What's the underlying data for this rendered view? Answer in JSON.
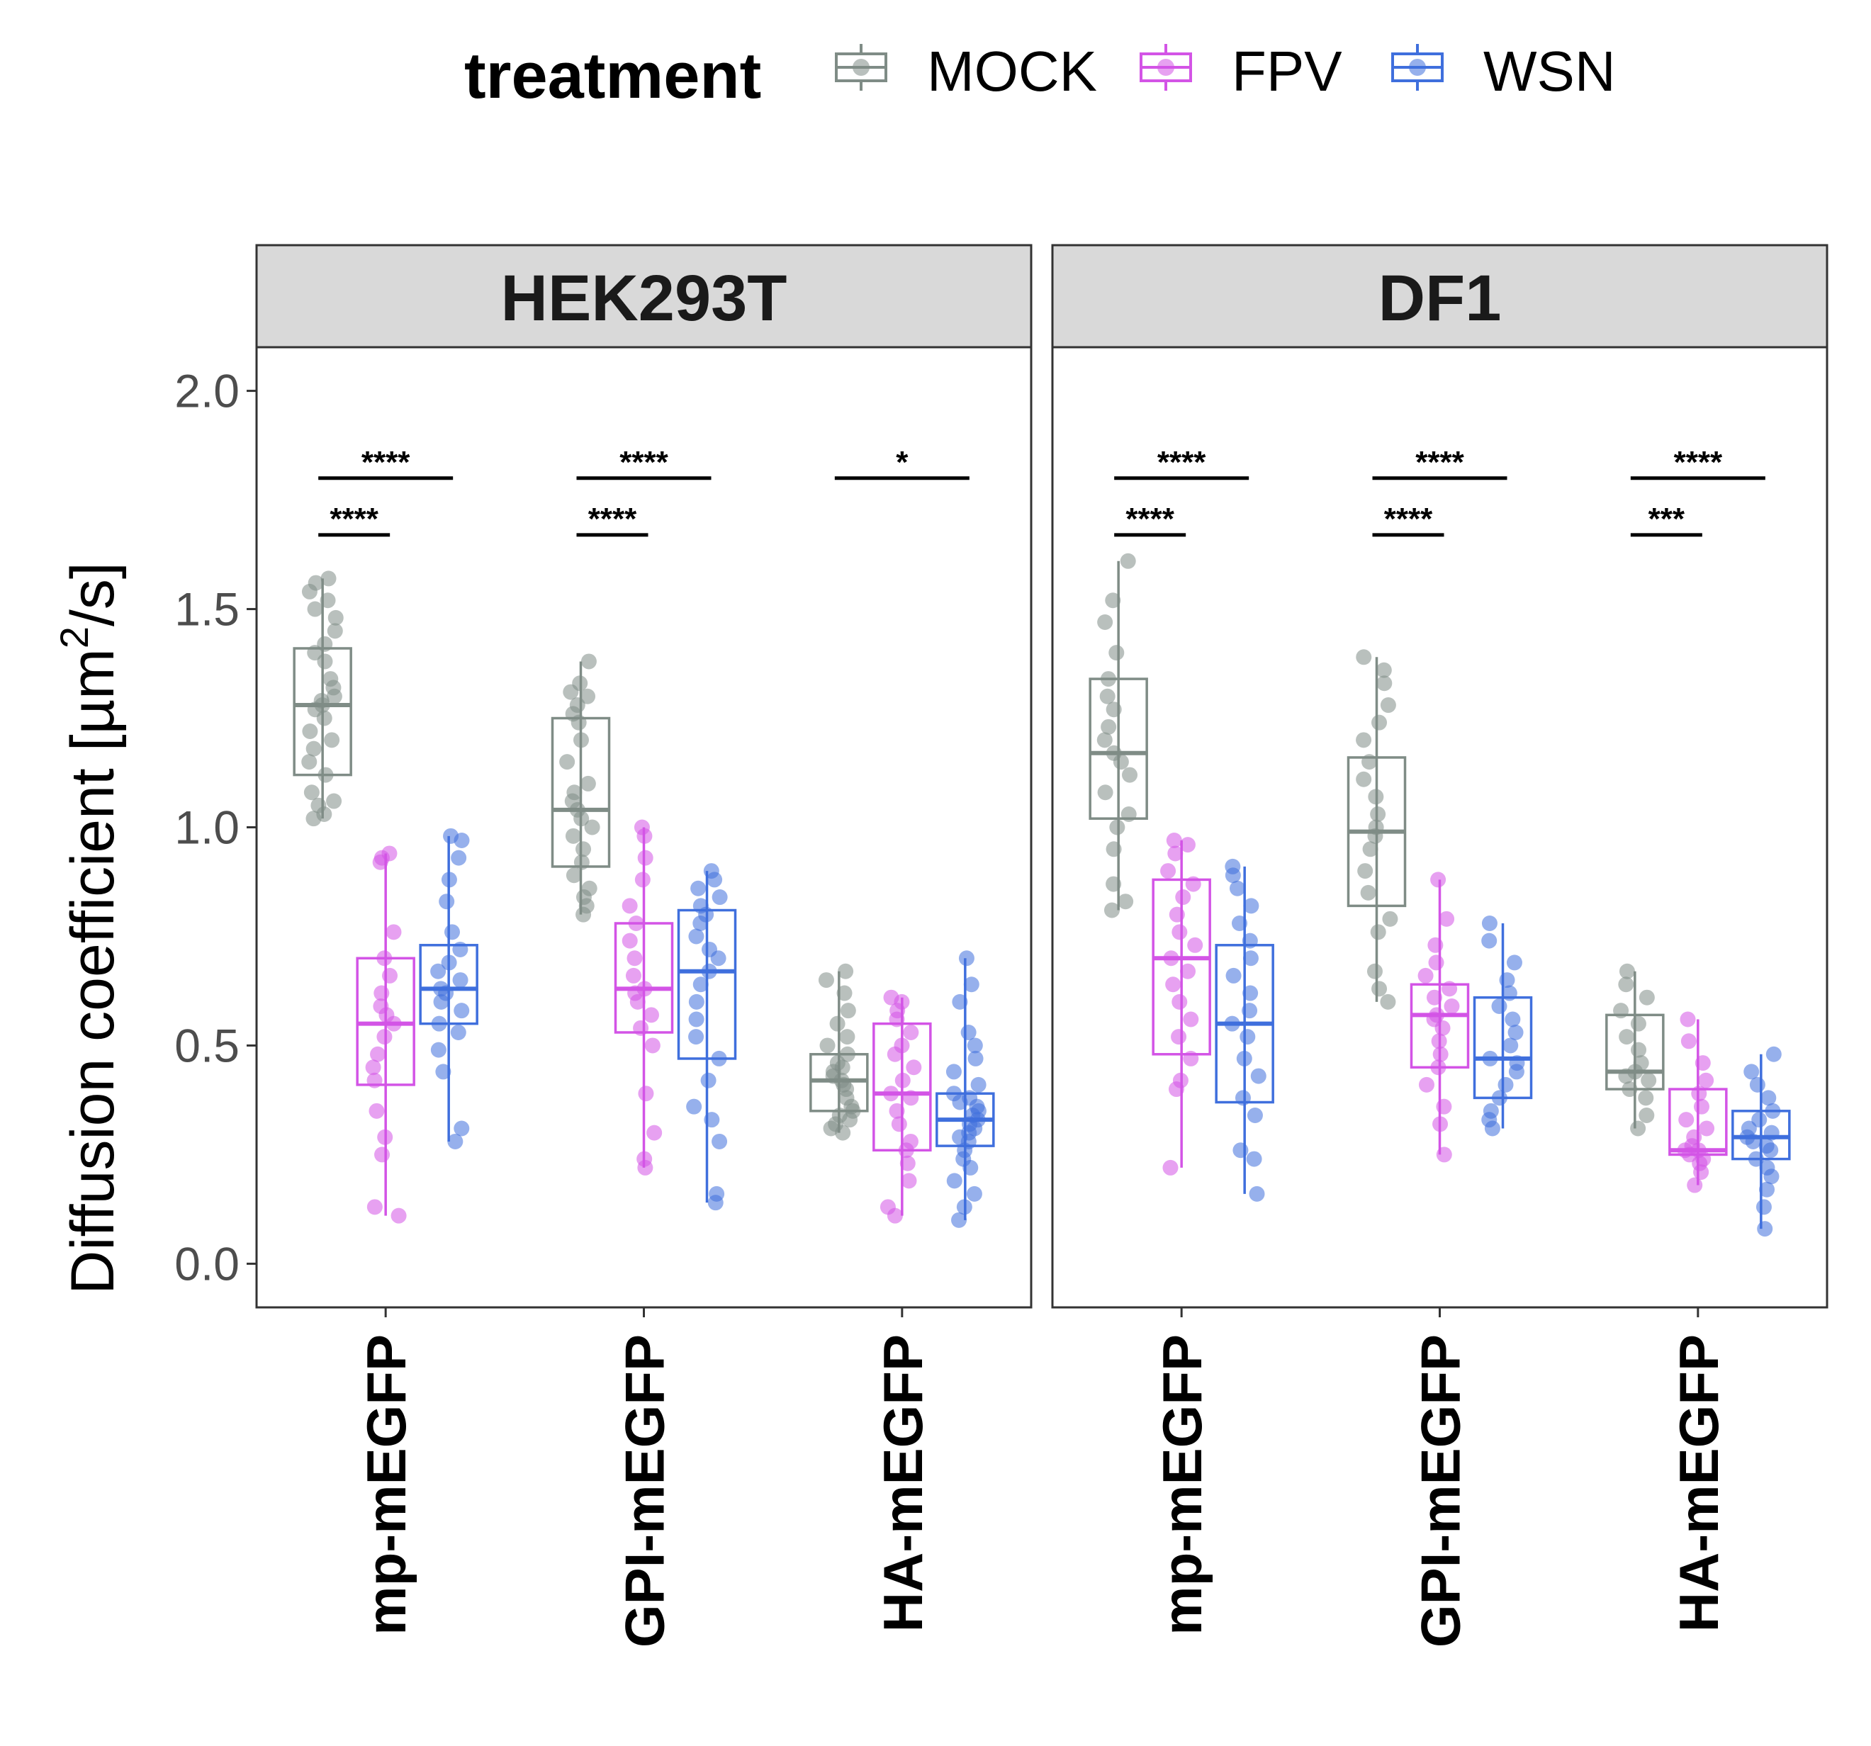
{
  "chart_data": {
    "type": "boxplot",
    "legend": {
      "title": "treatment",
      "position": "top",
      "entries": [
        {
          "label": "MOCK",
          "color": "#7f8c86"
        },
        {
          "label": "FPV",
          "color": "#d354e6"
        },
        {
          "label": "WSN",
          "color": "#3f6fdd"
        }
      ]
    },
    "ylabel": "Diffusion coefficient [µm",
    "ylabel_sup": "2",
    "ylabel_end": "/s]",
    "ylim": [
      -0.1,
      2.1
    ],
    "yticks": [
      0.0,
      0.5,
      1.0,
      1.5,
      2.0
    ],
    "ytick_labels": [
      "0.0",
      "0.5",
      "1.0",
      "1.5",
      "2.0"
    ],
    "categories": [
      "mp-mEGFP",
      "GPI-mEGFP",
      "HA-mEGFP"
    ],
    "treatments": [
      "MOCK",
      "FPV",
      "WSN"
    ],
    "facets": [
      {
        "label": "HEK293T",
        "boxes": [
          [
            {
              "q1": 1.12,
              "median": 1.28,
              "q3": 1.41,
              "lo": 1.02,
              "hi": 1.57,
              "points": [
                1.02,
                1.03,
                1.05,
                1.06,
                1.08,
                1.12,
                1.15,
                1.18,
                1.2,
                1.22,
                1.25,
                1.27,
                1.28,
                1.29,
                1.3,
                1.32,
                1.34,
                1.38,
                1.4,
                1.42,
                1.45,
                1.48,
                1.5,
                1.52,
                1.54,
                1.56,
                1.57
              ]
            },
            {
              "q1": 0.41,
              "median": 0.55,
              "q3": 0.7,
              "lo": 0.11,
              "hi": 0.94,
              "points": [
                0.11,
                0.13,
                0.25,
                0.29,
                0.35,
                0.42,
                0.45,
                0.48,
                0.52,
                0.55,
                0.57,
                0.59,
                0.62,
                0.66,
                0.7,
                0.76,
                0.92,
                0.93,
                0.94
              ]
            },
            {
              "q1": 0.55,
              "median": 0.63,
              "q3": 0.73,
              "lo": 0.28,
              "hi": 0.98,
              "points": [
                0.28,
                0.31,
                0.44,
                0.49,
                0.53,
                0.55,
                0.58,
                0.6,
                0.62,
                0.63,
                0.65,
                0.67,
                0.69,
                0.72,
                0.76,
                0.83,
                0.88,
                0.93,
                0.97,
                0.98
              ]
            }
          ],
          [
            {
              "q1": 0.91,
              "median": 1.04,
              "q3": 1.25,
              "lo": 0.8,
              "hi": 1.38,
              "points": [
                0.8,
                0.82,
                0.84,
                0.86,
                0.89,
                0.92,
                0.95,
                0.98,
                1.0,
                1.02,
                1.04,
                1.06,
                1.08,
                1.1,
                1.15,
                1.2,
                1.24,
                1.26,
                1.28,
                1.3,
                1.31,
                1.33,
                1.38
              ]
            },
            {
              "q1": 0.53,
              "median": 0.63,
              "q3": 0.78,
              "lo": 0.22,
              "hi": 1.0,
              "points": [
                0.22,
                0.24,
                0.3,
                0.39,
                0.5,
                0.54,
                0.57,
                0.6,
                0.62,
                0.63,
                0.66,
                0.7,
                0.74,
                0.78,
                0.82,
                0.88,
                0.93,
                0.98,
                1.0
              ]
            },
            {
              "q1": 0.47,
              "median": 0.67,
              "q3": 0.81,
              "lo": 0.14,
              "hi": 0.9,
              "points": [
                0.14,
                0.16,
                0.28,
                0.33,
                0.36,
                0.42,
                0.47,
                0.52,
                0.56,
                0.6,
                0.64,
                0.67,
                0.7,
                0.72,
                0.75,
                0.78,
                0.8,
                0.82,
                0.84,
                0.86,
                0.88,
                0.9
              ]
            }
          ],
          [
            {
              "q1": 0.35,
              "median": 0.42,
              "q3": 0.48,
              "lo": 0.3,
              "hi": 0.67,
              "points": [
                0.3,
                0.31,
                0.32,
                0.33,
                0.34,
                0.35,
                0.36,
                0.38,
                0.4,
                0.41,
                0.42,
                0.43,
                0.44,
                0.45,
                0.46,
                0.48,
                0.5,
                0.52,
                0.55,
                0.58,
                0.62,
                0.65,
                0.67
              ]
            },
            {
              "q1": 0.26,
              "median": 0.39,
              "q3": 0.55,
              "lo": 0.11,
              "hi": 0.61,
              "points": [
                0.11,
                0.13,
                0.19,
                0.23,
                0.26,
                0.28,
                0.32,
                0.35,
                0.38,
                0.39,
                0.42,
                0.45,
                0.48,
                0.5,
                0.53,
                0.56,
                0.58,
                0.6,
                0.61
              ]
            },
            {
              "q1": 0.27,
              "median": 0.33,
              "q3": 0.39,
              "lo": 0.1,
              "hi": 0.7,
              "points": [
                0.1,
                0.13,
                0.16,
                0.19,
                0.22,
                0.24,
                0.26,
                0.28,
                0.29,
                0.3,
                0.31,
                0.32,
                0.33,
                0.34,
                0.35,
                0.36,
                0.37,
                0.38,
                0.39,
                0.41,
                0.44,
                0.47,
                0.5,
                0.53,
                0.6,
                0.64,
                0.7
              ]
            }
          ]
        ],
        "significance": [
          [
            {
              "label": "****",
              "from": 0,
              "to": 2,
              "y": 1.8
            },
            {
              "label": "****",
              "from": 0,
              "to": 1,
              "y": 1.67
            }
          ],
          [
            {
              "label": "****",
              "from": 0,
              "to": 2,
              "y": 1.8
            },
            {
              "label": "****",
              "from": 0,
              "to": 1,
              "y": 1.67
            }
          ],
          [
            {
              "label": "*",
              "from": 0,
              "to": 2,
              "y": 1.8
            }
          ]
        ]
      },
      {
        "label": "DF1",
        "boxes": [
          [
            {
              "q1": 1.02,
              "median": 1.17,
              "q3": 1.34,
              "lo": 0.81,
              "hi": 1.61,
              "points": [
                0.81,
                0.83,
                0.87,
                0.95,
                1.0,
                1.03,
                1.08,
                1.12,
                1.15,
                1.17,
                1.2,
                1.23,
                1.27,
                1.3,
                1.34,
                1.4,
                1.47,
                1.52,
                1.61
              ]
            },
            {
              "q1": 0.48,
              "median": 0.7,
              "q3": 0.88,
              "lo": 0.22,
              "hi": 0.97,
              "points": [
                0.22,
                0.4,
                0.42,
                0.47,
                0.52,
                0.56,
                0.6,
                0.64,
                0.67,
                0.7,
                0.73,
                0.76,
                0.8,
                0.84,
                0.87,
                0.9,
                0.94,
                0.96,
                0.97
              ]
            },
            {
              "q1": 0.37,
              "median": 0.55,
              "q3": 0.73,
              "lo": 0.16,
              "hi": 0.91,
              "points": [
                0.16,
                0.24,
                0.26,
                0.34,
                0.38,
                0.43,
                0.47,
                0.52,
                0.55,
                0.58,
                0.62,
                0.66,
                0.7,
                0.74,
                0.78,
                0.82,
                0.86,
                0.89,
                0.91
              ]
            }
          ],
          [
            {
              "q1": 0.82,
              "median": 0.99,
              "q3": 1.16,
              "lo": 0.6,
              "hi": 1.39,
              "points": [
                0.6,
                0.63,
                0.67,
                0.76,
                0.79,
                0.85,
                0.9,
                0.95,
                0.98,
                1.0,
                1.03,
                1.07,
                1.11,
                1.15,
                1.2,
                1.24,
                1.28,
                1.33,
                1.36,
                1.39
              ]
            },
            {
              "q1": 0.45,
              "median": 0.57,
              "q3": 0.64,
              "lo": 0.25,
              "hi": 0.88,
              "points": [
                0.25,
                0.32,
                0.36,
                0.41,
                0.45,
                0.48,
                0.51,
                0.54,
                0.56,
                0.57,
                0.59,
                0.61,
                0.63,
                0.66,
                0.69,
                0.73,
                0.79,
                0.88
              ]
            },
            {
              "q1": 0.38,
              "median": 0.47,
              "q3": 0.61,
              "lo": 0.31,
              "hi": 0.78,
              "points": [
                0.31,
                0.33,
                0.35,
                0.38,
                0.41,
                0.44,
                0.46,
                0.47,
                0.5,
                0.53,
                0.56,
                0.59,
                0.62,
                0.65,
                0.69,
                0.74,
                0.78
              ]
            }
          ],
          [
            {
              "q1": 0.4,
              "median": 0.44,
              "q3": 0.57,
              "lo": 0.31,
              "hi": 0.67,
              "points": [
                0.31,
                0.34,
                0.38,
                0.4,
                0.42,
                0.43,
                0.44,
                0.46,
                0.49,
                0.52,
                0.55,
                0.58,
                0.61,
                0.64,
                0.67
              ]
            },
            {
              "q1": 0.25,
              "median": 0.26,
              "q3": 0.4,
              "lo": 0.18,
              "hi": 0.56,
              "points": [
                0.18,
                0.21,
                0.23,
                0.24,
                0.25,
                0.26,
                0.26,
                0.27,
                0.29,
                0.31,
                0.33,
                0.36,
                0.39,
                0.42,
                0.46,
                0.51,
                0.56
              ]
            },
            {
              "q1": 0.24,
              "median": 0.29,
              "q3": 0.35,
              "lo": 0.08,
              "hi": 0.48,
              "points": [
                0.08,
                0.13,
                0.17,
                0.2,
                0.22,
                0.24,
                0.26,
                0.27,
                0.28,
                0.29,
                0.3,
                0.31,
                0.33,
                0.35,
                0.38,
                0.41,
                0.44,
                0.48
              ]
            }
          ]
        ],
        "significance": [
          [
            {
              "label": "****",
              "from": 0,
              "to": 2,
              "y": 1.8
            },
            {
              "label": "****",
              "from": 0,
              "to": 1,
              "y": 1.67
            }
          ],
          [
            {
              "label": "****",
              "from": 0,
              "to": 2,
              "y": 1.8
            },
            {
              "label": "****",
              "from": 0,
              "to": 1,
              "y": 1.67
            }
          ],
          [
            {
              "label": "****",
              "from": 0,
              "to": 2,
              "y": 1.8
            },
            {
              "label": "***",
              "from": 0,
              "to": 1,
              "y": 1.67
            }
          ]
        ]
      }
    ]
  }
}
